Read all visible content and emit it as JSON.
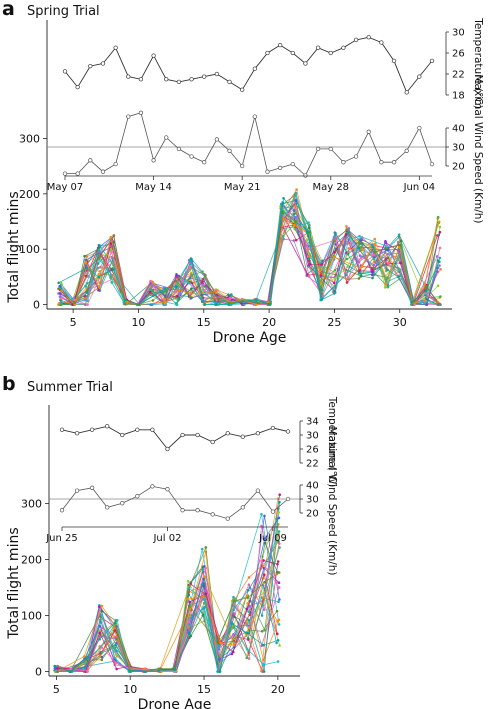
{
  "panels": [
    {
      "letter": "a",
      "title": "Spring Trial"
    },
    {
      "letter": "b",
      "title": "Summer Trial"
    }
  ],
  "chart_data": [
    {
      "type": "line",
      "panel": "a",
      "title": "Spring Trial",
      "xlabel": "Drone Age",
      "ylabel": "Total flight mins",
      "xlim": [
        3,
        34
      ],
      "ylim": [
        -8,
        225
      ],
      "xticks": [
        5,
        10,
        15,
        20,
        25,
        30
      ],
      "yticks": [
        0,
        100,
        200,
        300
      ],
      "flight_mins_by_age": {
        "x": [
          4,
          5,
          6,
          7,
          8,
          9,
          10,
          11,
          12,
          13,
          14,
          15,
          16,
          17,
          18,
          19,
          20,
          21,
          22,
          23,
          24,
          25,
          26,
          27,
          28,
          29,
          30,
          31,
          32,
          33
        ],
        "typical_max": [
          40,
          10,
          90,
          110,
          130,
          10,
          0,
          45,
          30,
          60,
          90,
          60,
          30,
          20,
          10,
          10,
          5,
          200,
          215,
          150,
          80,
          130,
          150,
          130,
          120,
          120,
          140,
          5,
          40,
          165
        ],
        "typical_mean": [
          10,
          2,
          40,
          60,
          80,
          5,
          0,
          15,
          10,
          25,
          45,
          25,
          10,
          8,
          4,
          3,
          2,
          150,
          160,
          95,
          40,
          70,
          90,
          85,
          80,
          70,
          85,
          2,
          15,
          30
        ]
      },
      "temperature": {
        "label": "Temperature (°C)",
        "ticks": [
          18,
          22,
          26,
          30
        ],
        "dates": [
          "May 07",
          "May 08",
          "May 09",
          "May 10",
          "May 11",
          "May 12",
          "May 13",
          "May 14",
          "May 15",
          "May 16",
          "May 17",
          "May 18",
          "May 19",
          "May 20",
          "May 21",
          "May 22",
          "May 23",
          "May 24",
          "May 25",
          "May 26",
          "May 27",
          "May 28",
          "May 29",
          "May 30",
          "May 31",
          "Jun 01",
          "Jun 02",
          "Jun 03",
          "Jun 04",
          "Jun 05"
        ],
        "values": [
          22.5,
          19.5,
          23.5,
          24,
          27,
          21.5,
          21,
          25.5,
          21,
          20.5,
          21,
          21.5,
          22,
          20.5,
          19,
          23,
          26,
          27.5,
          26,
          24,
          27,
          26,
          27,
          28.5,
          29,
          28,
          24.5,
          18.5,
          21.5,
          24.5
        ]
      },
      "wind": {
        "label": "Maximal Wind Speed (Km/h)",
        "ticks": [
          20,
          30,
          40
        ],
        "reference": 30,
        "dates": [
          "May 07",
          "May 08",
          "May 09",
          "May 10",
          "May 11",
          "May 12",
          "May 13",
          "May 14",
          "May 15",
          "May 16",
          "May 17",
          "May 18",
          "May 19",
          "May 20",
          "May 21",
          "May 22",
          "May 23",
          "May 24",
          "May 25",
          "May 26",
          "May 27",
          "May 28",
          "May 29",
          "May 30",
          "May 31",
          "Jun 01",
          "Jun 02",
          "Jun 03",
          "Jun 04",
          "Jun 05"
        ],
        "values": [
          16,
          16,
          23,
          17,
          21,
          46,
          48,
          23,
          35,
          29,
          25,
          22,
          34,
          28,
          20,
          46,
          17,
          19,
          21,
          15,
          29,
          29,
          22,
          25,
          38,
          22,
          22,
          28,
          40,
          21
        ]
      },
      "date_axis": {
        "ticks": [
          "May 07",
          "May 14",
          "May 21",
          "May 28",
          "Jun 04"
        ]
      }
    },
    {
      "type": "line",
      "panel": "b",
      "title": "Summer Trial",
      "xlabel": "Drone Age",
      "ylabel": "Total flight mins",
      "xlim": [
        4.5,
        21.5
      ],
      "ylim": [
        -8,
        235
      ],
      "xticks": [
        5,
        10,
        15,
        20
      ],
      "yticks": [
        0,
        100,
        200,
        300
      ],
      "flight_mins_by_age": {
        "x": [
          5,
          6,
          7,
          8,
          9,
          10,
          11,
          12,
          13,
          14,
          15,
          16,
          17,
          18,
          19,
          20
        ],
        "typical_max": [
          10,
          5,
          30,
          130,
          95,
          10,
          5,
          5,
          5,
          170,
          225,
          60,
          140,
          170,
          330,
          330
        ],
        "typical_mean": [
          2,
          1,
          10,
          70,
          45,
          3,
          1,
          1,
          2,
          100,
          150,
          20,
          80,
          90,
          140,
          150
        ]
      },
      "temperature": {
        "label": "Temperature (°C)",
        "ticks": [
          22,
          26,
          30,
          34
        ],
        "dates": [
          "Jun 25",
          "Jun 26",
          "Jun 27",
          "Jun 28",
          "Jun 29",
          "Jun 30",
          "Jul 01",
          "Jul 02",
          "Jul 03",
          "Jul 04",
          "Jul 05",
          "Jul 06",
          "Jul 07",
          "Jul 08",
          "Jul 09",
          "Jul 10"
        ],
        "values": [
          31.5,
          30.5,
          31.5,
          32.5,
          30,
          31.5,
          31.5,
          26,
          30,
          30,
          28,
          30.5,
          29.5,
          30.5,
          32,
          31
        ]
      },
      "wind": {
        "label": "Maximal Wind Speed (Km/h)",
        "ticks": [
          20,
          30,
          40
        ],
        "reference": 30,
        "dates": [
          "Jun 25",
          "Jun 26",
          "Jun 27",
          "Jun 28",
          "Jun 29",
          "Jun 30",
          "Jul 01",
          "Jul 02",
          "Jul 03",
          "Jul 04",
          "Jul 05",
          "Jul 06",
          "Jul 07",
          "Jul 08",
          "Jul 09",
          "Jul 10"
        ],
        "values": [
          22,
          36,
          38,
          24,
          27,
          32,
          39,
          37,
          22,
          22,
          19,
          16,
          24,
          36,
          21,
          30
        ]
      },
      "date_axis": {
        "ticks": [
          "Jun 25",
          "Jul 02",
          "Jul 09"
        ]
      }
    }
  ]
}
